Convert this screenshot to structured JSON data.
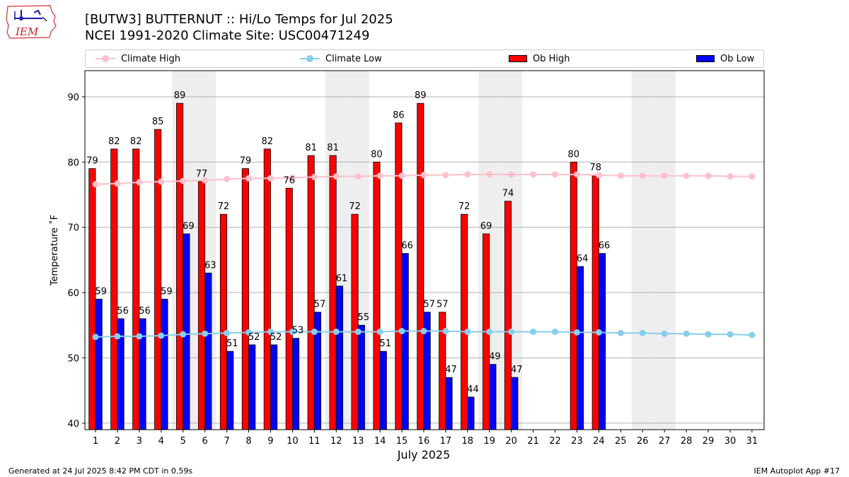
{
  "header": {
    "title_line1": "[BUTW3] BUTTERNUT :: Hi/Lo Temps for Jul 2025",
    "title_line2": "NCEI 1991-2020 Climate Site: USC00471249",
    "logo_text": "IEM"
  },
  "legend": [
    {
      "label": "Climate High",
      "kind": "line",
      "color": "#ffc0cb"
    },
    {
      "label": "Climate Low",
      "kind": "line",
      "color": "#87ceeb"
    },
    {
      "label": "Ob High",
      "kind": "bar",
      "color": "#ff0000"
    },
    {
      "label": "Ob Low",
      "kind": "bar",
      "color": "#0000ff"
    }
  ],
  "footer": {
    "left": "Generated at 24 Jul 2025 8:42 PM CDT in 0.59s",
    "right": "IEM Autoplot App #17"
  },
  "chart_data": {
    "type": "bar",
    "title": "[BUTW3] BUTTERNUT :: Hi/Lo Temps for Jul 2025",
    "xlabel": "July 2025",
    "ylabel": "Temperature ˚F",
    "ylim": [
      39,
      94
    ],
    "yticks": [
      40,
      50,
      60,
      70,
      80,
      90
    ],
    "grid": true,
    "legend_position": "top",
    "categories": [
      "1",
      "2",
      "3",
      "4",
      "5",
      "6",
      "7",
      "8",
      "9",
      "10",
      "11",
      "12",
      "13",
      "14",
      "15",
      "16",
      "17",
      "18",
      "19",
      "20",
      "21",
      "22",
      "23",
      "24",
      "25",
      "26",
      "27",
      "28",
      "29",
      "30",
      "31"
    ],
    "weekend_days": [
      5,
      6,
      12,
      13,
      19,
      20,
      26,
      27
    ],
    "series": [
      {
        "name": "Ob High",
        "kind": "bar",
        "color": "#ff0000",
        "values": [
          79,
          82,
          82,
          85,
          89,
          77,
          72,
          79,
          82,
          76,
          81,
          81,
          72,
          80,
          86,
          89,
          57,
          72,
          69,
          74,
          null,
          null,
          80,
          78,
          null,
          null,
          null,
          null,
          null,
          null,
          null
        ]
      },
      {
        "name": "Ob Low",
        "kind": "bar",
        "color": "#0000ff",
        "values": [
          59,
          56,
          56,
          59,
          69,
          63,
          51,
          52,
          52,
          53,
          57,
          61,
          55,
          51,
          66,
          57,
          47,
          44,
          49,
          47,
          null,
          null,
          64,
          66,
          null,
          null,
          null,
          null,
          null,
          null,
          null
        ]
      },
      {
        "name": "Climate High",
        "kind": "line",
        "color": "#ffc0cb",
        "values": [
          76.6,
          76.7,
          76.9,
          77.0,
          77.1,
          77.2,
          77.4,
          77.5,
          77.5,
          77.6,
          77.7,
          77.8,
          77.8,
          77.9,
          77.9,
          78.0,
          78.0,
          78.1,
          78.1,
          78.1,
          78.1,
          78.1,
          78.1,
          78.0,
          77.9,
          77.9,
          77.9,
          77.9,
          77.9,
          77.8,
          77.8
        ]
      },
      {
        "name": "Climate Low",
        "kind": "line",
        "color": "#87ceeb",
        "values": [
          53.2,
          53.3,
          53.3,
          53.4,
          53.6,
          53.7,
          53.8,
          53.9,
          54.0,
          54.0,
          54.0,
          54.0,
          54.0,
          54.0,
          54.1,
          54.1,
          54.1,
          54.0,
          54.0,
          54.0,
          54.0,
          54.0,
          53.9,
          53.9,
          53.8,
          53.8,
          53.7,
          53.7,
          53.6,
          53.6,
          53.5
        ]
      }
    ]
  }
}
